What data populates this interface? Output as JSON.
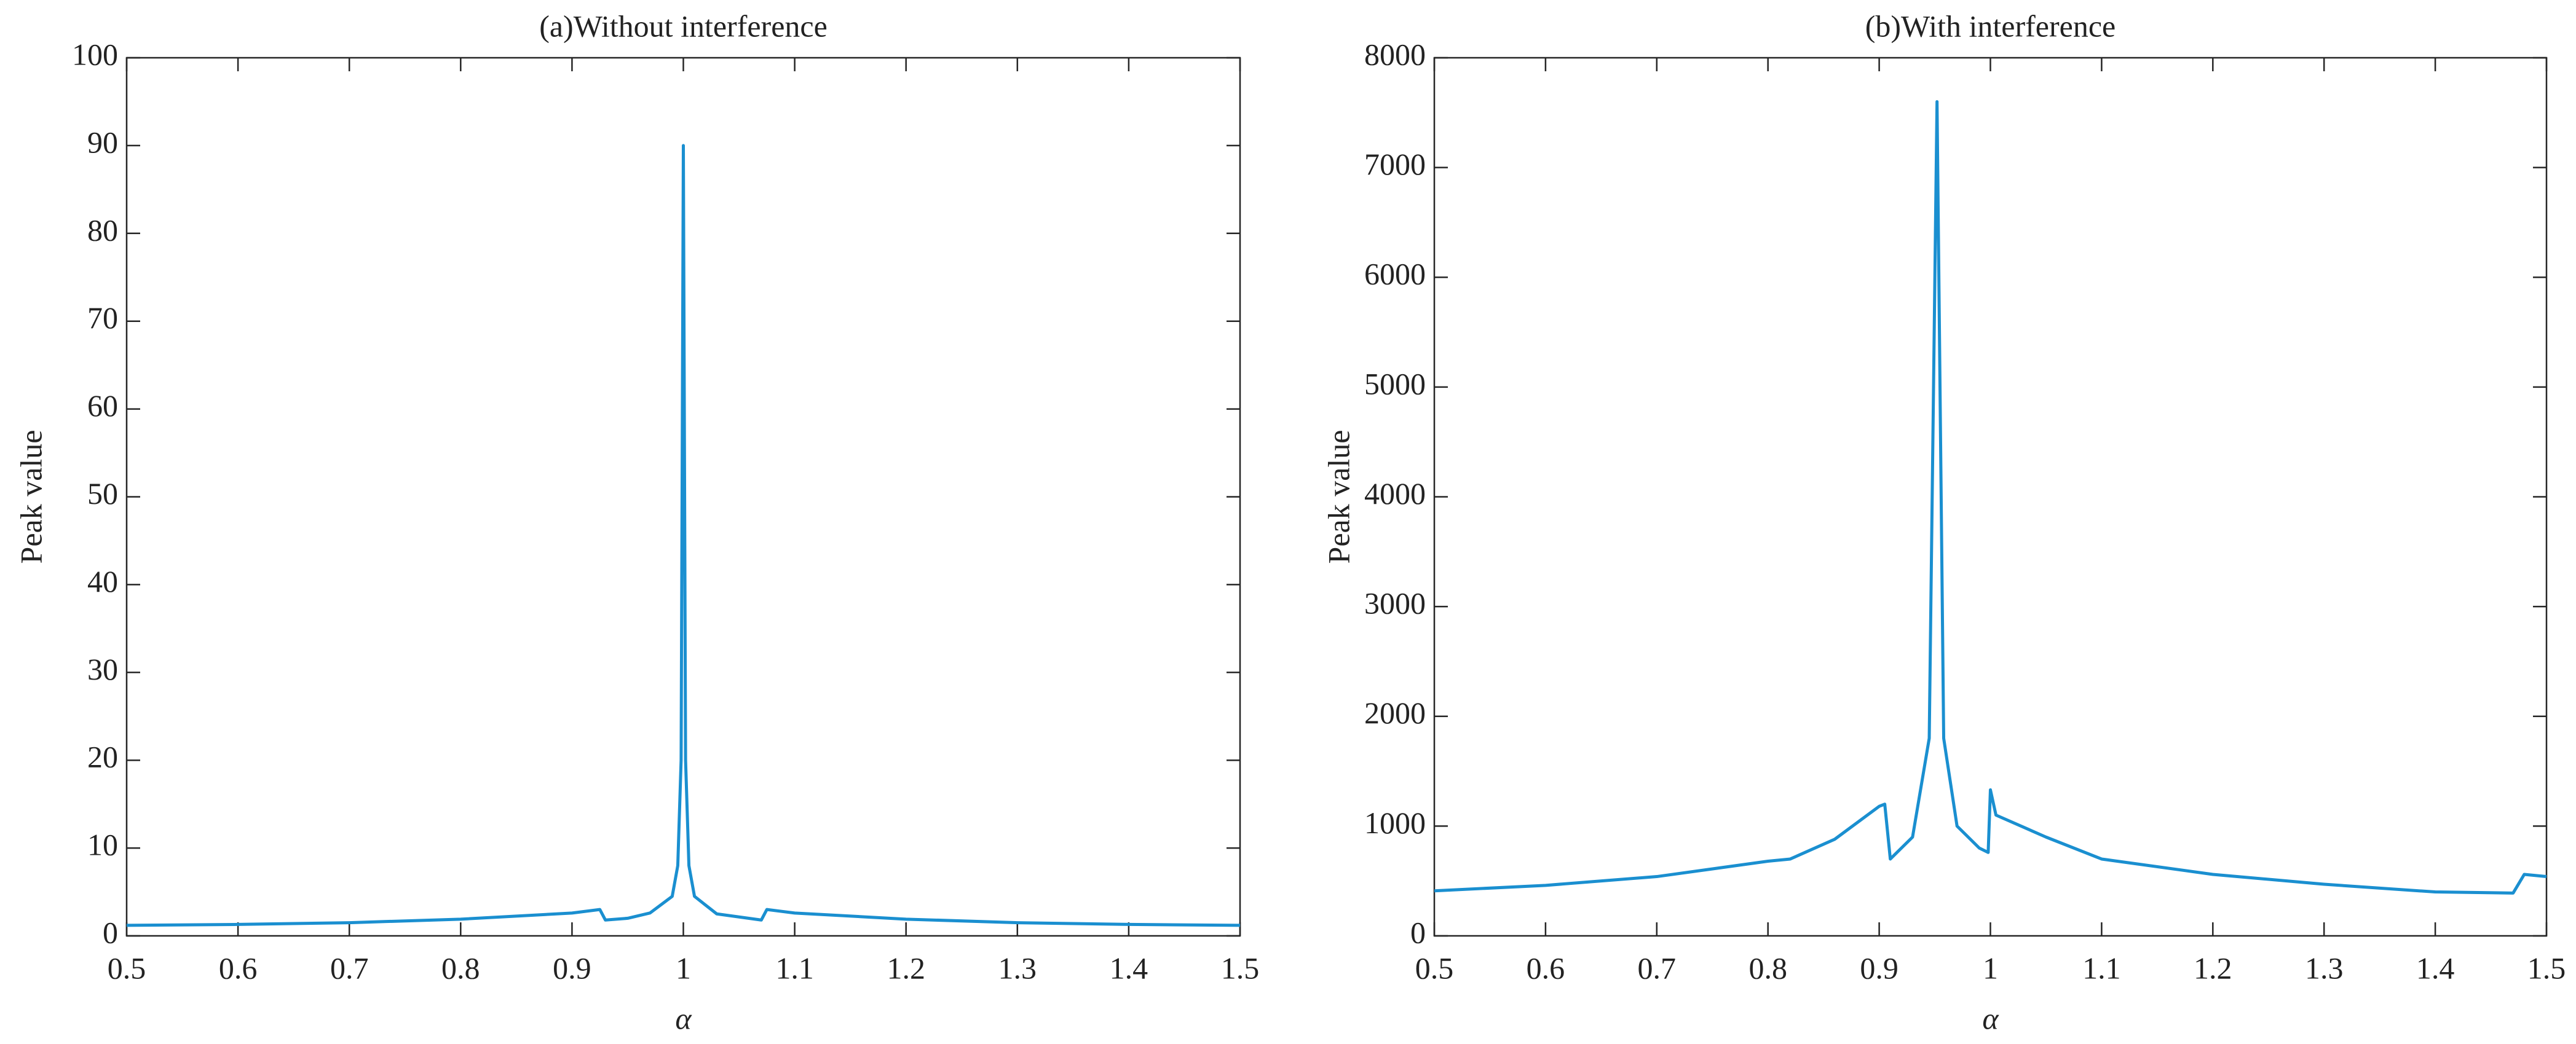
{
  "chart_data": [
    {
      "type": "line",
      "title": "(a)Without interference",
      "xlabel": "α",
      "ylabel": "Peak value",
      "xlim": [
        0.5,
        1.5
      ],
      "xticks": [
        0.5,
        0.6,
        0.7,
        0.8,
        0.9,
        1,
        1.1,
        1.2,
        1.3,
        1.4,
        1.5
      ],
      "ylim": [
        0,
        100
      ],
      "yticks": [
        0,
        10,
        20,
        30,
        40,
        50,
        60,
        70,
        80,
        90,
        100
      ],
      "series": [
        {
          "color": "#1a8fd0",
          "x": [
            0.5,
            0.6,
            0.7,
            0.8,
            0.9,
            0.925,
            0.93,
            0.95,
            0.97,
            0.99,
            0.995,
            0.998,
            1.0,
            1.002,
            1.005,
            1.01,
            1.03,
            1.07,
            1.075,
            1.1,
            1.2,
            1.3,
            1.4,
            1.5
          ],
          "values": [
            1.2,
            1.3,
            1.5,
            1.9,
            2.6,
            3.0,
            1.8,
            2.0,
            2.6,
            4.5,
            8,
            20,
            90,
            20,
            8,
            4.5,
            2.5,
            1.8,
            3.0,
            2.6,
            1.9,
            1.5,
            1.3,
            1.2
          ]
        }
      ]
    },
    {
      "type": "line",
      "title": "(b)With interference",
      "xlabel": "α",
      "ylabel": "Peak value",
      "xlim": [
        0.5,
        1.5
      ],
      "xticks": [
        0.5,
        0.6,
        0.7,
        0.8,
        0.9,
        1,
        1.1,
        1.2,
        1.3,
        1.4,
        1.5
      ],
      "ylim": [
        0,
        8000
      ],
      "yticks": [
        0,
        1000,
        2000,
        3000,
        4000,
        5000,
        6000,
        7000,
        8000
      ],
      "series": [
        {
          "color": "#1a8fd0",
          "x": [
            0.5,
            0.6,
            0.7,
            0.8,
            0.82,
            0.86,
            0.9,
            0.905,
            0.91,
            0.93,
            0.945,
            0.952,
            0.958,
            0.97,
            0.99,
            0.998,
            1.0,
            1.005,
            1.05,
            1.1,
            1.2,
            1.3,
            1.4,
            1.47,
            1.48,
            1.5
          ],
          "values": [
            410,
            460,
            540,
            680,
            700,
            880,
            1180,
            1200,
            700,
            900,
            1800,
            7600,
            1800,
            1000,
            800,
            760,
            1330,
            1100,
            900,
            700,
            560,
            470,
            400,
            390,
            560,
            540
          ]
        }
      ]
    }
  ]
}
